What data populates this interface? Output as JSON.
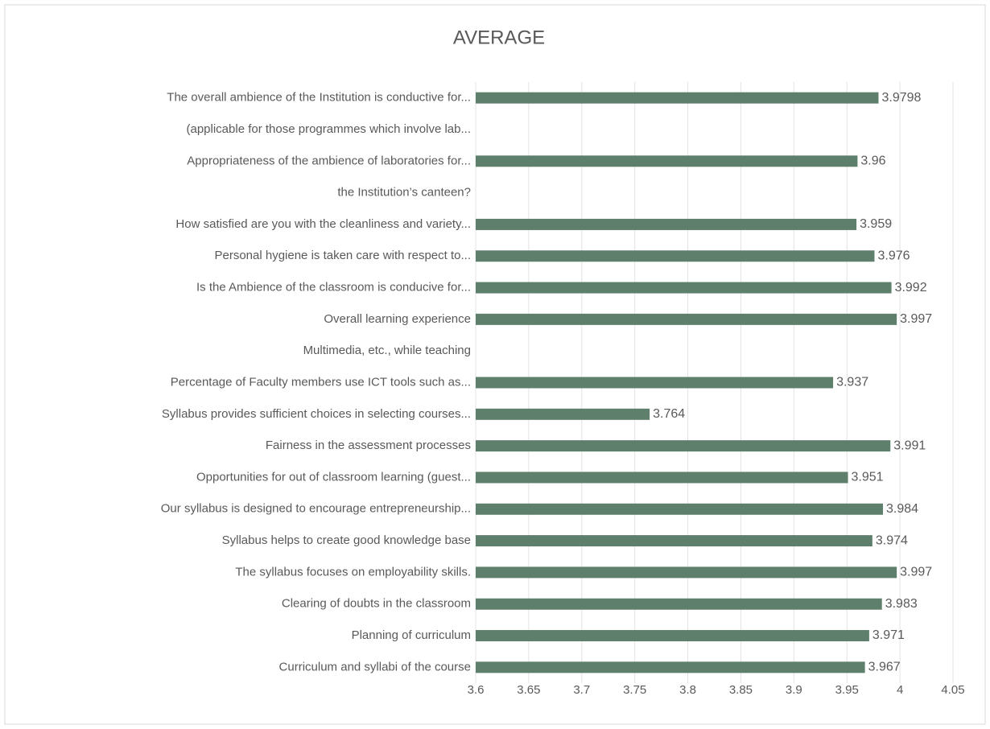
{
  "chart_data": {
    "type": "barh",
    "title": "AVERAGE",
    "categories": [
      "The overall ambience of the Institution is conductive for...",
      "(applicable for those programmes which involve lab...",
      "Appropriateness of the ambience of laboratories for...",
      "the Institution’s canteen?",
      "How satisfied are you with the cleanliness and variety...",
      "Personal hygiene is taken care with respect to...",
      "Is the Ambience of the classroom is conducive for...",
      "Overall learning experience",
      "Multimedia, etc., while teaching",
      "Percentage of Faculty members use ICT tools such as...",
      "Syllabus provides sufficient choices in selecting courses...",
      "Fairness in the assessment processes",
      "Opportunities for out of classroom learning (guest...",
      "Our syllabus is designed to encourage entrepreneurship...",
      "Syllabus helps to create good knowledge base",
      "The syllabus focuses on employability skills.",
      "Clearing of doubts in the classroom",
      "Planning of curriculum",
      "Curriculum and syllabi of the course"
    ],
    "values": [
      3.9798,
      null,
      3.96,
      null,
      3.959,
      3.976,
      3.992,
      3.997,
      null,
      3.937,
      3.764,
      3.991,
      3.951,
      3.984,
      3.974,
      3.997,
      3.983,
      3.971,
      3.967
    ],
    "color": "#5f7f6d",
    "xlim": [
      3.6,
      4.05
    ],
    "xticks": [
      3.6,
      3.65,
      3.7,
      3.75,
      3.8,
      3.85,
      3.9,
      3.95,
      4,
      4.05
    ],
    "grid": true
  }
}
